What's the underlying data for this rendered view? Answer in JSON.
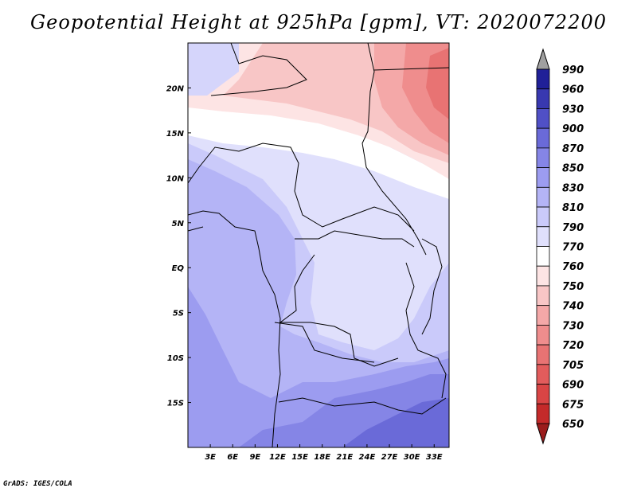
{
  "chart_data": {
    "type": "heatmap",
    "title": "Geopotential Height at 925hPa [gpm], VT: 2020072200",
    "x_tick_labels": [
      "3E",
      "6E",
      "9E",
      "12E",
      "15E",
      "18E",
      "21E",
      "24E",
      "27E",
      "30E",
      "33E"
    ],
    "y_tick_labels": [
      "20N",
      "15N",
      "10N",
      "5N",
      "EQ",
      "5S",
      "10S",
      "15S"
    ],
    "x_range_deg": [
      0,
      35
    ],
    "y_range_deg": [
      -20,
      25
    ],
    "colorbar": {
      "levels": [
        650,
        675,
        690,
        705,
        720,
        730,
        740,
        750,
        760,
        770,
        790,
        810,
        830,
        850,
        870,
        900,
        930,
        960,
        990
      ],
      "colors": [
        "#9b1c1c",
        "#c42a2a",
        "#d94545",
        "#e25c5c",
        "#e87373",
        "#ef8d8d",
        "#f4a8a8",
        "#f8c6c6",
        "#fde4e4",
        "#ffffff",
        "#e0e0fc",
        "#cacafa",
        "#b4b4f6",
        "#9c9cf0",
        "#8585e6",
        "#6a6ad8",
        "#5050c6",
        "#3838b0",
        "#202098"
      ],
      "over_color": "#a0a0a0",
      "under_color": "#9b1c1c"
    }
  },
  "footer": {
    "credit": "GrADS: IGES/COLA"
  }
}
